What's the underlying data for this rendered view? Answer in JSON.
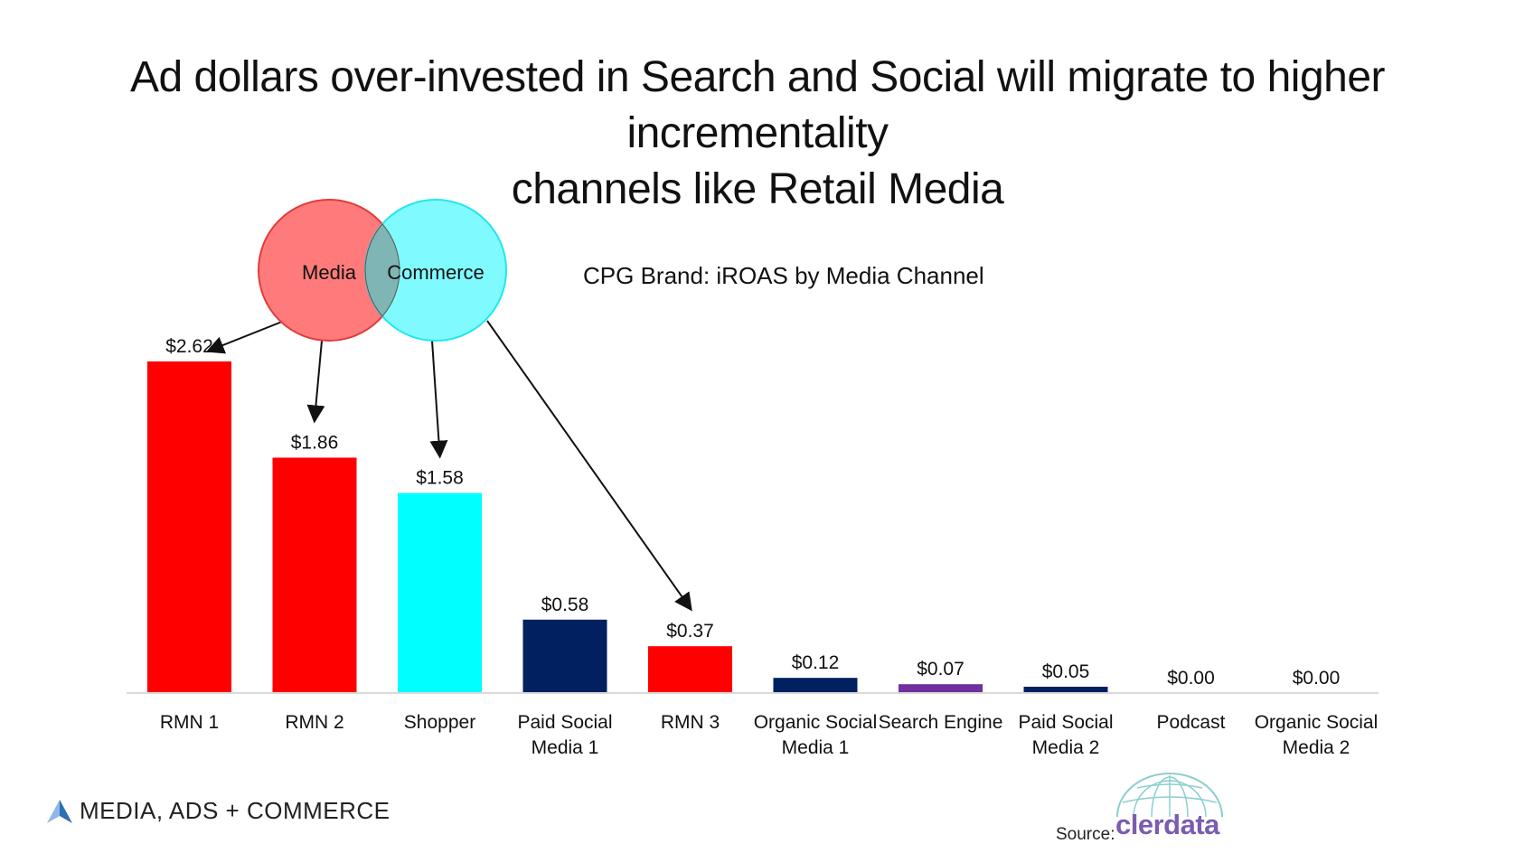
{
  "title": {
    "line1": "Ad dollars over-invested in Search and Social will migrate to higher incrementality",
    "line2": "channels like Retail Media"
  },
  "venn": {
    "left_label": "Media",
    "right_label": "Commerce",
    "left_color": "#ff7b7b",
    "right_color": "#7ffbff",
    "overlap_color": "#7fb6b5"
  },
  "footer": {
    "logo_text": "MEDIA, ADS + COMMERCE",
    "source_label": "Source:",
    "source_brand": "clerdata"
  },
  "chart_data": {
    "type": "bar",
    "title": "CPG Brand: iROAS by Media Channel",
    "categories": [
      [
        "RMN 1"
      ],
      [
        "RMN 2"
      ],
      [
        "Shopper"
      ],
      [
        "Paid Social",
        "Media 1"
      ],
      [
        "RMN 3"
      ],
      [
        "Organic Social",
        "Media 1"
      ],
      [
        "Search Engine"
      ],
      [
        "Paid Social",
        "Media 2"
      ],
      [
        "Podcast"
      ],
      [
        "Organic Social",
        "Media 2"
      ]
    ],
    "values": [
      2.62,
      1.86,
      1.58,
      0.58,
      0.37,
      0.12,
      0.07,
      0.05,
      0.0,
      0.0
    ],
    "data_labels": [
      "$2.62",
      "$1.86",
      "$1.58",
      "$0.58",
      "$0.37",
      "$0.12",
      "$0.07",
      "$0.05",
      "$0.00",
      "$0.00"
    ],
    "colors": [
      "#ff0000",
      "#ff0000",
      "#00ffff",
      "#002060",
      "#ff0000",
      "#002060",
      "#7030a0",
      "#002060",
      "#002060",
      "#002060"
    ],
    "ylim": [
      0,
      2.62
    ],
    "grid": false,
    "legend": "none"
  }
}
